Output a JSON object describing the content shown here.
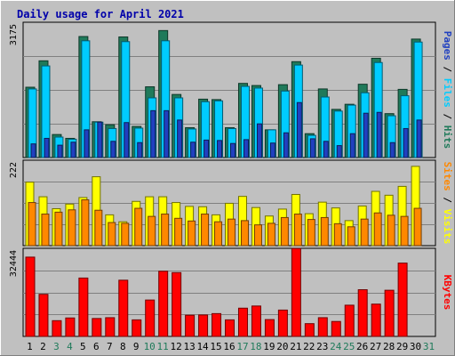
{
  "chart_data": {
    "type": "bar",
    "title": "Daily usage for April 2021",
    "categories": [
      "1",
      "2",
      "3",
      "4",
      "5",
      "6",
      "7",
      "8",
      "9",
      "10",
      "11",
      "12",
      "13",
      "14",
      "15",
      "16",
      "17",
      "18",
      "19",
      "20",
      "21",
      "22",
      "23",
      "24",
      "25",
      "26",
      "27",
      "28",
      "29",
      "30",
      "31"
    ],
    "weekend_days": [
      "3",
      "4",
      "10",
      "11",
      "17",
      "18",
      "24",
      "25",
      "31"
    ],
    "panels": [
      {
        "id": "top",
        "ylim": [
          0,
          3175
        ],
        "ymax_label": "3175",
        "legend": [
          "Pages",
          "Files",
          "Hits"
        ],
        "series": [
          {
            "name": "Hits",
            "color": "#1f7a5a",
            "values": [
              1650,
              2270,
              540,
              450,
              2840,
              840,
              770,
              2830,
              730,
              1660,
              2980,
              1480,
              700,
              1370,
              1360,
              700,
              1740,
              1690,
              650,
              1710,
              2250,
              560,
              1610,
              1130,
              1250,
              1720,
              2330,
              1030,
              1600,
              2780,
              0
            ]
          },
          {
            "name": "Files",
            "color": "#00ccff",
            "values": [
              1610,
              2150,
              480,
              430,
              2740,
              830,
              680,
              2720,
              690,
              1400,
              2740,
              1400,
              670,
              1310,
              1330,
              680,
              1670,
              1630,
              650,
              1560,
              2170,
              520,
              1420,
              1090,
              1230,
              1520,
              2230,
              980,
              1450,
              2710,
              0
            ]
          },
          {
            "name": "Pages",
            "color": "#2040c0",
            "values": [
              320,
              450,
              290,
              360,
              650,
              830,
              380,
              820,
              350,
              1100,
              1100,
              880,
              360,
              410,
              400,
              330,
              420,
              790,
              340,
              580,
              1290,
              440,
              380,
              280,
              560,
              1040,
              1060,
              350,
              680,
              880,
              0
            ]
          }
        ]
      },
      {
        "id": "middle",
        "ylim": [
          0,
          222
        ],
        "ymax_label": "222",
        "legend": [
          "Sites",
          "Visits"
        ],
        "series": [
          {
            "name": "Visits",
            "color": "#ffff00",
            "values": [
              165,
              127,
              96,
              108,
              125,
              179,
              80,
              62,
              115,
              127,
              127,
              112,
              102,
              101,
              80,
              110,
              128,
              99,
              77,
              95,
              133,
              83,
              113,
              98,
              65,
              103,
              141,
              131,
              154,
              206,
              0
            ]
          },
          {
            "name": "Sites",
            "color": "#ff8800",
            "values": [
              112,
              82,
              87,
              93,
              119,
              92,
              60,
              58,
              97,
              76,
              82,
              71,
              64,
              82,
              62,
              69,
              65,
              54,
              58,
              73,
              82,
              68,
              73,
              57,
              49,
              69,
              85,
              79,
              76,
              97,
              0
            ]
          }
        ]
      },
      {
        "id": "bottom",
        "ylim": [
          0,
          32444
        ],
        "ymax_label": "32444",
        "legend": [
          "KBytes"
        ],
        "series": [
          {
            "name": "KBytes",
            "color": "#ff0000",
            "values": [
              29200,
              15500,
              5800,
              6800,
              21500,
              6600,
              6900,
              20700,
              6100,
              13400,
              24000,
              23500,
              7800,
              7900,
              8400,
              6100,
              10400,
              11200,
              6200,
              9700,
              32400,
              4700,
              6900,
              5500,
              11500,
              17200,
              11900,
              17000,
              27000,
              0,
              0
            ]
          }
        ]
      }
    ]
  }
}
